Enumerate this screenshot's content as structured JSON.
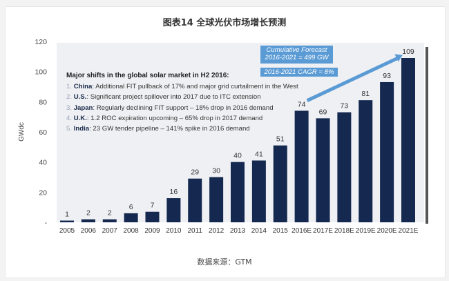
{
  "header": {
    "title": "图表14  全球光伏市场增长预测"
  },
  "footer": {
    "source": "数据来源：GTM"
  },
  "annotations": {
    "heading": "Major shifts in the global solar market in H2 2016:",
    "items": [
      {
        "num": "1.",
        "country": "China",
        "text": ": Additional FIT pullback of 17% and major grid curtailment in the West"
      },
      {
        "num": "2.",
        "country": "U.S.",
        "text": ": Significant project spillover into 2017 due to ITC extension"
      },
      {
        "num": "3.",
        "country": "Japan",
        "text": ": Regularly declining FIT support – 18% drop in 2016 demand"
      },
      {
        "num": "4.",
        "country": "U.K.",
        "text": ": 1.2 ROC expiration upcoming – 65% drop in 2017 demand"
      },
      {
        "num": "5.",
        "country": "India",
        "text": ": 23 GW tender pipeline – 141% spike in 2016 demand"
      }
    ],
    "callout_forecast_line1": "Cumulative Forecast",
    "callout_forecast_line2": "2016-2021 = 499 GW",
    "callout_cagr": "2016-2021 CAGR = 8%"
  },
  "colors": {
    "bar": "#142850",
    "plot_bg": "#eef0f3",
    "arrow": "#5b9bd5"
  },
  "chart_data": {
    "type": "bar",
    "title": "图表14  全球光伏市场增长预测",
    "xlabel": "",
    "ylabel": "GWdc",
    "ylim": [
      0,
      120
    ],
    "yticks": [
      0,
      20,
      40,
      60,
      80,
      100,
      120
    ],
    "ytick_labels": [
      "-",
      "20",
      "40",
      "60",
      "80",
      "100",
      "120"
    ],
    "grid": false,
    "categories": [
      "2005",
      "2006",
      "2007",
      "2008",
      "2009",
      "2010",
      "2011",
      "2012",
      "2013",
      "2014",
      "2015",
      "2016E",
      "2017E",
      "2018E",
      "2019E",
      "2020E",
      "2021E"
    ],
    "values": [
      1,
      2,
      2,
      6,
      7,
      16,
      29,
      30,
      40,
      41,
      51,
      74,
      69,
      73,
      81,
      93,
      109
    ],
    "data_labels": true,
    "trend_arrow": {
      "from_category": "2016E",
      "to_category": "2021E"
    }
  }
}
